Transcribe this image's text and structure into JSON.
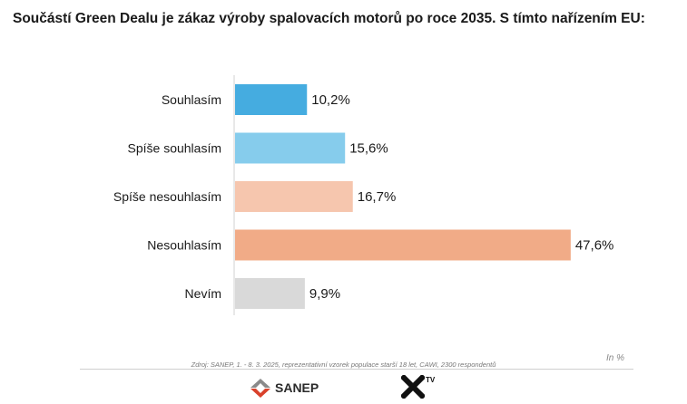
{
  "header": {
    "title": "Součástí Green Dealu je zákaz výroby spalovacích motorů po roce 2035. S tímto nařízením EU:"
  },
  "chart_data": {
    "type": "bar",
    "orientation": "horizontal",
    "categories": [
      "Souhlasím",
      "Spíše souhlasím",
      "Spíše nesouhlasím",
      "Nesouhlasím",
      "Nevím"
    ],
    "values": [
      10.2,
      15.6,
      16.7,
      47.6,
      9.9
    ],
    "value_labels": [
      "10,2%",
      "15,6%",
      "16,7%",
      "47,6%",
      "9,9%"
    ],
    "colors": [
      "#45ACE0",
      "#86CCEC",
      "#F6C6AE",
      "#F1AB87",
      "#D9D9D9"
    ],
    "xlim": [
      0,
      100
    ],
    "grid": false,
    "legend": "none"
  },
  "footer": {
    "unit_label": "In %",
    "source": "Zdroj: SANEP, 1. - 8. 3. 2025, reprezentativní vzorek populace starší 18 let, CAWI, 2300 respondentů",
    "logo_sanep_text": "SANEP",
    "logo_xtv_suffix": "TV"
  }
}
